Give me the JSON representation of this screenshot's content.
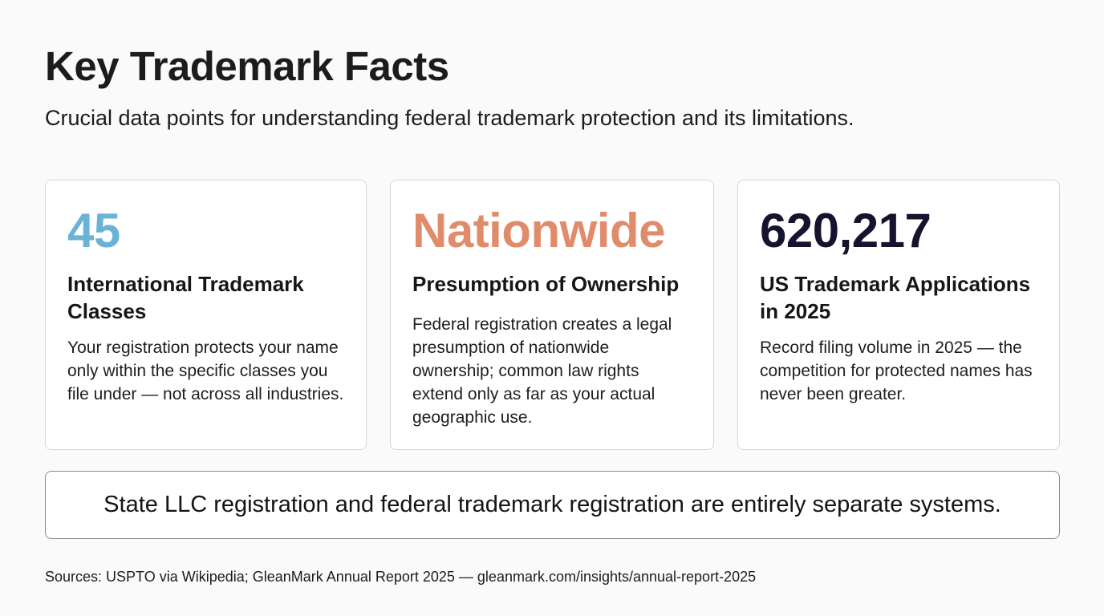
{
  "header": {
    "title": "Key Trademark Facts",
    "subtitle": "Crucial data points for understanding federal trademark protection and its limitations."
  },
  "cards": [
    {
      "value": "45",
      "label": "International Trademark Classes",
      "description": "Your registration protects your name only within the specific classes you file under — not across all industries.",
      "accent_color": "#6bb3d6"
    },
    {
      "value": "Nationwide",
      "label": "Presumption of Ownership",
      "description": "Federal registration creates a legal presumption of nationwide ownership; common law rights extend only as far as your actual geographic use.",
      "accent_color": "#e08c6b"
    },
    {
      "value": "620,217",
      "label": "US Trademark Applications in 2025",
      "description": "Record filing volume in 2025 — the competition for protected names has never been greater.",
      "accent_color": "#15142e"
    }
  ],
  "callout": {
    "text": "State LLC registration and federal trademark registration are entirely separate systems."
  },
  "footer": {
    "sources": "Sources: USPTO via Wikipedia; GleanMark Annual Report 2025 — gleanmark.com/insights/annual-report-2025"
  }
}
